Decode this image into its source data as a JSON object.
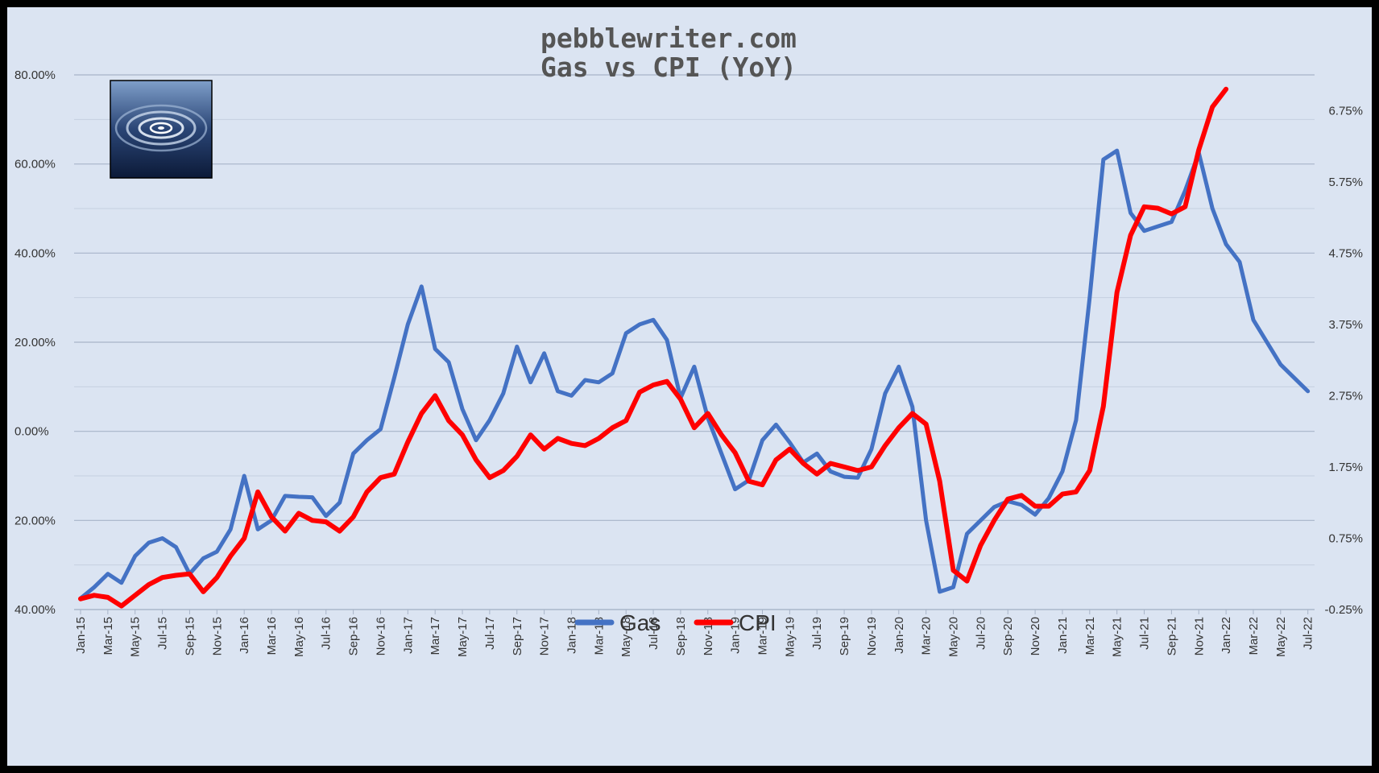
{
  "chart_data": {
    "type": "line",
    "title": "pebblewriter.com",
    "subtitle": "Gas vs CPI (YoY)",
    "x_tick_labels": [
      "Jan-15",
      "Mar-15",
      "May-15",
      "Jul-15",
      "Sep-15",
      "Nov-15",
      "Jan-16",
      "Mar-16",
      "May-16",
      "Jul-16",
      "Sep-16",
      "Nov-16",
      "Jan-17",
      "Mar-17",
      "May-17",
      "Jul-17",
      "Sep-17",
      "Nov-17",
      "Jan-18",
      "Mar-18",
      "May-18",
      "Jul-18",
      "Sep-18",
      "Nov-18",
      "Jan-19",
      "Mar-19",
      "May-19",
      "Jul-19",
      "Sep-19",
      "Nov-19",
      "Jan-20",
      "Mar-20",
      "May-20",
      "Jul-20",
      "Sep-20",
      "Nov-20",
      "Jan-21",
      "Mar-21",
      "May-21",
      "Jul-21",
      "Sep-21",
      "Nov-21",
      "Jan-22",
      "Mar-22",
      "May-22",
      "Jul-22"
    ],
    "y_left": {
      "tick_labels": [
        "80.00%",
        "60.00%",
        "40.00%",
        "20.00%",
        "0.00%",
        "20.00%",
        "40.00%"
      ],
      "tick_values": [
        80,
        60,
        40,
        20,
        0,
        -20,
        -40
      ],
      "ylim": [
        -40,
        80
      ]
    },
    "y_right": {
      "tick_labels": [
        "6.75%",
        "5.75%",
        "4.75%",
        "3.75%",
        "2.75%",
        "1.75%",
        "0.75%",
        "-0.25%"
      ],
      "tick_values": [
        6.75,
        5.75,
        4.75,
        3.75,
        2.75,
        1.75,
        0.75,
        -0.25
      ],
      "ylim": [
        -0.25,
        7.25
      ]
    },
    "grid": true,
    "legend_position": "bottom-center",
    "series": [
      {
        "name": "Gas",
        "axis": "left",
        "color": "#4472c4",
        "values": [
          -37.5,
          -35,
          -32,
          -34,
          -28,
          -25,
          -24,
          -26,
          -32,
          -28.5,
          -27,
          -22,
          -10,
          -22,
          -20,
          -14.5,
          -14.7,
          -14.8,
          -19,
          -16,
          -5,
          -2,
          0.5,
          12,
          24,
          32.5,
          18.5,
          15.5,
          5,
          -2,
          2.5,
          8.5,
          19,
          11,
          17.5,
          9,
          8,
          11.5,
          11,
          13,
          22,
          24,
          25,
          20.5,
          7.5,
          14.5,
          3,
          -5,
          -13,
          -11,
          -2,
          1.5,
          -2.5,
          -7,
          -5,
          -9,
          -10.2,
          -10.4,
          -4,
          8.5,
          14.5,
          5.5,
          -20,
          -36,
          -35,
          -23,
          -20,
          -17,
          -15.7,
          -16.5,
          -18.7,
          -15,
          -9,
          2.5,
          30,
          61,
          63,
          49,
          45,
          46,
          47,
          54,
          62.5,
          50,
          42,
          38,
          25,
          20,
          15,
          12,
          9
        ]
      },
      {
        "name": "CPI",
        "axis": "right",
        "color": "#ff0000",
        "values": [
          -0.1,
          -0.05,
          -0.08,
          -0.2,
          -0.05,
          0.1,
          0.2,
          0.23,
          0.25,
          0,
          0.2,
          0.5,
          0.75,
          1.4,
          1.05,
          0.85,
          1.1,
          1,
          0.98,
          0.85,
          1.05,
          1.4,
          1.6,
          1.65,
          2.1,
          2.5,
          2.75,
          2.4,
          2.2,
          1.85,
          1.6,
          1.7,
          1.9,
          2.2,
          2,
          2.15,
          2.08,
          2.05,
          2.15,
          2.3,
          2.4,
          2.8,
          2.9,
          2.95,
          2.7,
          2.3,
          2.5,
          2.2,
          1.95,
          1.55,
          1.5,
          1.85,
          2,
          1.8,
          1.65,
          1.8,
          1.75,
          1.7,
          1.75,
          2.05,
          2.3,
          2.5,
          2.35,
          1.55,
          0.3,
          0.15,
          0.65,
          1,
          1.3,
          1.35,
          1.2,
          1.2,
          1.37,
          1.4,
          1.7,
          2.6,
          4.2,
          5,
          5.4,
          5.38,
          5.3,
          5.4,
          6.2,
          6.8,
          7.05
        ]
      }
    ]
  }
}
